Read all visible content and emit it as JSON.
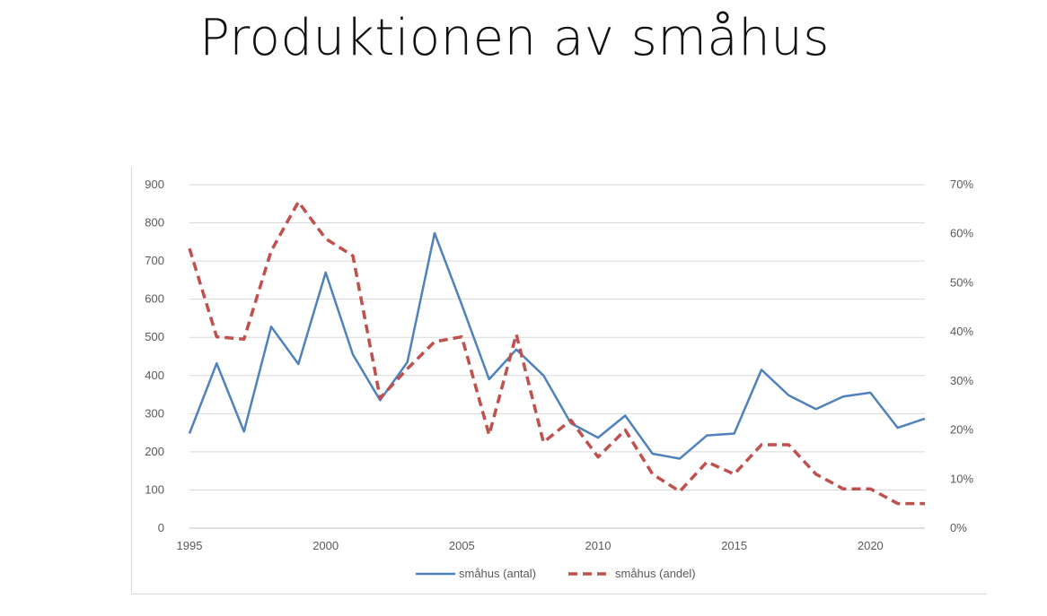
{
  "slide": {
    "title": "Produktionen av småhus"
  },
  "chart_data": {
    "type": "line",
    "title": "",
    "x": [
      1995,
      1996,
      1997,
      1998,
      1999,
      2000,
      2001,
      2002,
      2003,
      2004,
      2005,
      2006,
      2007,
      2008,
      2009,
      2010,
      2011,
      2012,
      2013,
      2014,
      2015,
      2016,
      2017,
      2018,
      2019,
      2020,
      2021,
      2022
    ],
    "x_ticks": [
      "1995",
      "2000",
      "2005",
      "2010",
      "2015",
      "2020"
    ],
    "y_left": {
      "ylim": [
        0,
        900
      ],
      "ticks": [
        "0",
        "100",
        "200",
        "300",
        "400",
        "500",
        "600",
        "700",
        "800",
        "900"
      ]
    },
    "y_right": {
      "ylim": [
        0,
        0.7
      ],
      "ticks": [
        "0%",
        "10%",
        "20%",
        "30%",
        "40%",
        "50%",
        "60%",
        "70%"
      ]
    },
    "grid": "horizontal",
    "legend_position": "bottom",
    "series": [
      {
        "name": "småhus (antal)",
        "axis": "left",
        "color": "#4f81bd",
        "style": "solid",
        "values": [
          248,
          432,
          253,
          528,
          430,
          670,
          455,
          335,
          435,
          773,
          585,
          390,
          468,
          400,
          275,
          237,
          295,
          195,
          182,
          243,
          248,
          415,
          348,
          312,
          345,
          355,
          263,
          287
        ]
      },
      {
        "name": "småhus (andel)",
        "axis": "right",
        "color": "#c0504d",
        "style": "dashed",
        "values": [
          0.57,
          0.39,
          0.385,
          0.565,
          0.665,
          0.59,
          0.555,
          0.265,
          0.325,
          0.38,
          0.39,
          0.19,
          0.395,
          0.175,
          0.22,
          0.145,
          0.2,
          0.11,
          0.075,
          0.135,
          0.11,
          0.17,
          0.17,
          0.11,
          0.08,
          0.08,
          0.05,
          0.05
        ]
      }
    ]
  }
}
